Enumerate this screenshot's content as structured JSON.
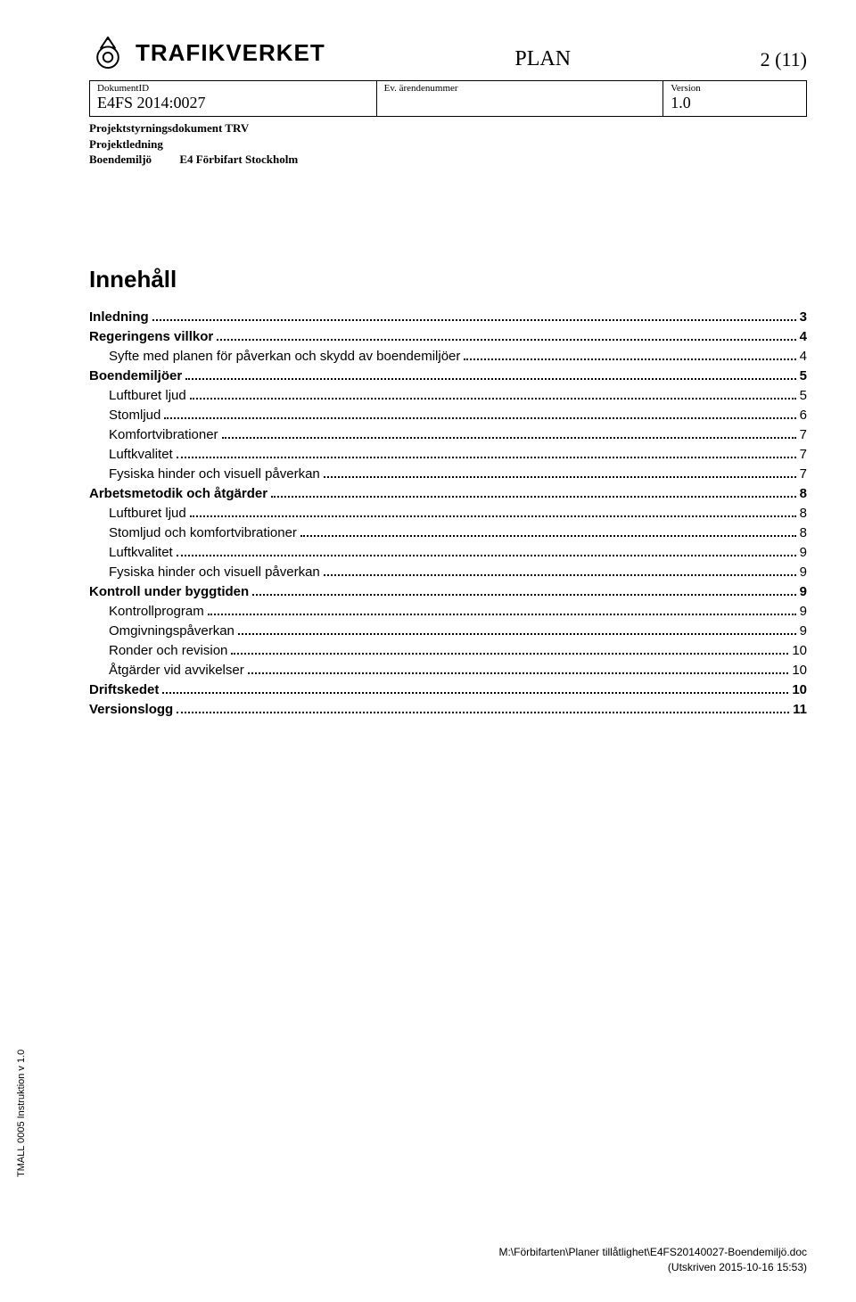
{
  "header": {
    "brand": "TRAFIKVERKET",
    "doc_type": "PLAN",
    "page_indicator": "2 (11)"
  },
  "meta": {
    "labels": {
      "doc_id": "DokumentID",
      "case_no": "Ev. ärendenummer",
      "version": "Version"
    },
    "values": {
      "doc_id": "E4FS 2014:0027",
      "case_no": "",
      "version": "1.0"
    },
    "sub1": "Projektstyrningsdokument TRV",
    "sub2": "Projektledning",
    "sub3a": "Boendemiljö",
    "sub3b": "E4 Förbifart Stockholm"
  },
  "toc_title": "Innehåll",
  "toc": [
    {
      "level": 0,
      "label": "Inledning",
      "page": "3"
    },
    {
      "level": 0,
      "label": "Regeringens villkor",
      "page": "4"
    },
    {
      "level": 1,
      "label": "Syfte med planen för påverkan och skydd av boendemiljöer",
      "page": "4"
    },
    {
      "level": 0,
      "label": "Boendemiljöer",
      "page": "5"
    },
    {
      "level": 1,
      "label": "Luftburet ljud",
      "page": "5"
    },
    {
      "level": 1,
      "label": "Stomljud",
      "page": "6"
    },
    {
      "level": 1,
      "label": "Komfortvibrationer",
      "page": "7"
    },
    {
      "level": 1,
      "label": "Luftkvalitet",
      "page": "7"
    },
    {
      "level": 1,
      "label": "Fysiska hinder och visuell påverkan",
      "page": "7"
    },
    {
      "level": 0,
      "label": "Arbetsmetodik och åtgärder",
      "page": "8"
    },
    {
      "level": 1,
      "label": "Luftburet ljud",
      "page": "8"
    },
    {
      "level": 1,
      "label": "Stomljud och komfortvibrationer",
      "page": "8"
    },
    {
      "level": 1,
      "label": "Luftkvalitet",
      "page": "9"
    },
    {
      "level": 1,
      "label": "Fysiska hinder och visuell påverkan",
      "page": "9"
    },
    {
      "level": 0,
      "label": "Kontroll under byggtiden",
      "page": "9"
    },
    {
      "level": 1,
      "label": "Kontrollprogram",
      "page": "9"
    },
    {
      "level": 1,
      "label": "Omgivningspåverkan",
      "page": "9"
    },
    {
      "level": 1,
      "label": "Ronder och revision",
      "page": "10"
    },
    {
      "level": 1,
      "label": "Åtgärder vid avvikelser",
      "page": "10"
    },
    {
      "level": 0,
      "label": "Driftskedet",
      "page": "10"
    },
    {
      "level": 0,
      "label": "Versionslogg",
      "page": "11"
    }
  ],
  "side_label": "TMALL 0005 Instruktion v 1.0",
  "footer": {
    "path": "M:\\Förbifarten\\Planer tillåtlighet\\E4FS20140027-Boendemiljö.doc",
    "printed": "(Utskriven 2015-10-16 15:53)"
  },
  "colors": {
    "text": "#000000",
    "bg": "#ffffff"
  }
}
